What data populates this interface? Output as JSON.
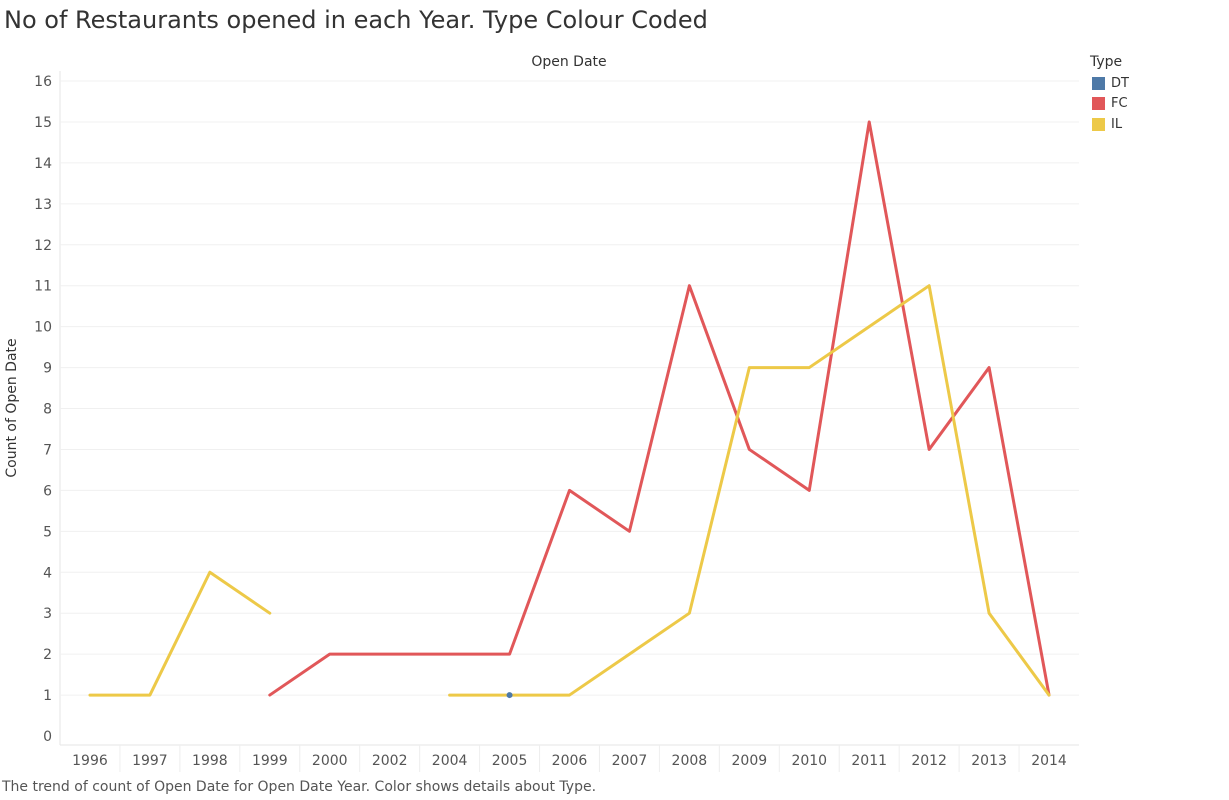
{
  "title": "No of Restaurants opened in each Year. Type Colour Coded",
  "caption": "The trend of count of Open Date for Open Date Year.  Color shows details about Type.",
  "legend": {
    "title": "Type",
    "items": [
      {
        "label": "DT",
        "color": "#4e79a7"
      },
      {
        "label": "FC",
        "color": "#e15759"
      },
      {
        "label": "IL",
        "color": "#edc948"
      }
    ]
  },
  "chart_data": {
    "type": "line",
    "title": "No of Restaurants opened in each Year. Type Colour Coded",
    "xlabel": "Open Date",
    "ylabel": "Count of Open Date",
    "categories": [
      "1996",
      "1997",
      "1998",
      "1999",
      "2000",
      "2002",
      "2004",
      "2005",
      "2006",
      "2007",
      "2008",
      "2009",
      "2010",
      "2011",
      "2012",
      "2013",
      "2014"
    ],
    "ylim": [
      0,
      16
    ],
    "yticks": [
      0,
      1,
      2,
      3,
      4,
      5,
      6,
      7,
      8,
      9,
      10,
      11,
      12,
      13,
      14,
      15,
      16
    ],
    "grid": true,
    "legend_position": "top-right",
    "series": [
      {
        "name": "DT",
        "color": "#4e79a7",
        "values": [
          null,
          null,
          null,
          null,
          null,
          null,
          null,
          1,
          null,
          null,
          null,
          null,
          null,
          null,
          null,
          null,
          null
        ]
      },
      {
        "name": "FC",
        "color": "#e15759",
        "values": [
          null,
          null,
          null,
          1,
          2,
          2,
          2,
          2,
          6,
          5,
          11,
          7,
          6,
          15,
          7,
          9,
          1
        ]
      },
      {
        "name": "IL",
        "color": "#edc948",
        "values": [
          1,
          1,
          4,
          3,
          null,
          null,
          1,
          1,
          1,
          2,
          3,
          9,
          9,
          10,
          11,
          3,
          1
        ]
      }
    ]
  }
}
